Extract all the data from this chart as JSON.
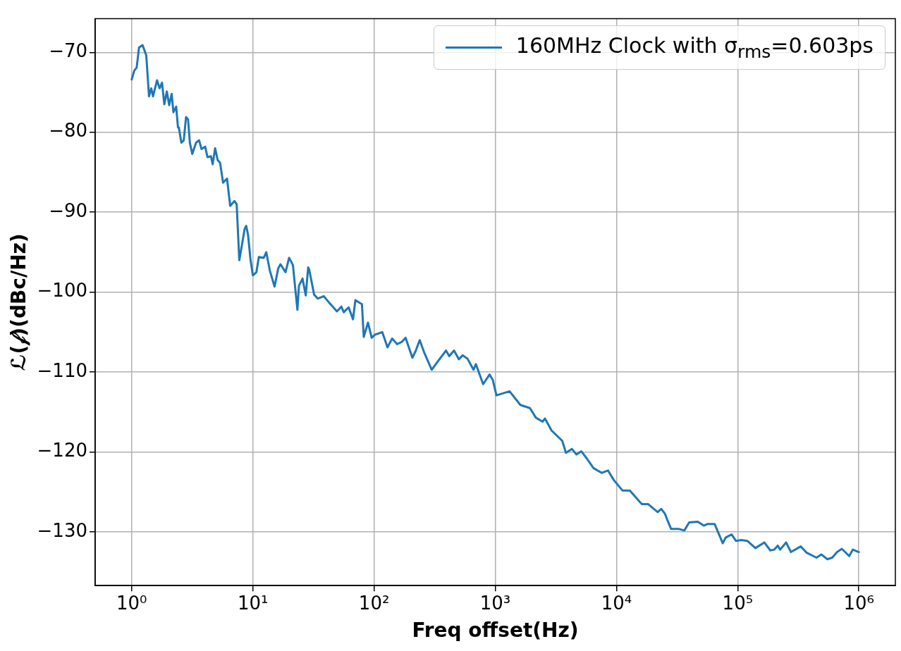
{
  "chart_data": {
    "type": "line",
    "xlabel": "Freq offset(Hz)",
    "ylabel": "ℒ(𝒻)(dBc/Hz)",
    "log": "x",
    "grid": true,
    "legend": "top right",
    "marker": "none",
    "line_style": "solid",
    "xlim": [
      0.5,
      2000000
    ],
    "ylim": [
      -136.7,
      -65.8
    ],
    "xticks": [
      {
        "value": 1,
        "label": "10⁰"
      },
      {
        "value": 10,
        "label": "10¹"
      },
      {
        "value": 100,
        "label": "10²"
      },
      {
        "value": 1000,
        "label": "10³"
      },
      {
        "value": 10000,
        "label": "10⁴"
      },
      {
        "value": 100000,
        "label": "10⁵"
      },
      {
        "value": 1000000,
        "label": "10⁶"
      }
    ],
    "yticks": [
      -130,
      -120,
      -110,
      -100,
      -90,
      -80,
      -70
    ],
    "series": [
      {
        "name": "160MHz Clock with σ$_{rms}$=0.603ps",
        "color": "#1f77b4",
        "x": [
          1,
          1.05,
          1.1,
          1.15,
          1.23,
          1.32,
          1.39,
          1.45,
          1.5,
          1.62,
          1.7,
          1.78,
          1.86,
          1.95,
          2.04,
          2.14,
          2.21,
          2.33,
          2.41,
          2.45,
          2.57,
          2.69,
          2.81,
          2.92,
          3.02,
          3.16,
          3.4,
          3.6,
          3.77,
          4.04,
          4.22,
          4.51,
          4.66,
          4.88,
          5.13,
          5.36,
          5.68,
          6.12,
          6.5,
          7.05,
          7.35,
          7.73,
          7.98,
          8.55,
          8.81,
          9.12,
          9.57,
          10,
          10.7,
          11.2,
          12.3,
          12.9,
          13.8,
          15.1,
          16.2,
          16.9,
          18.6,
          19.9,
          21.4,
          23.3,
          24,
          25.7,
          27.3,
          28.6,
          29.2,
          32,
          34.3,
          38.5,
          43.1,
          49.4,
          53.7,
          56.2,
          61.7,
          67,
          70.1,
          79.4,
          82.2,
          89.1,
          95.5,
          102,
          117,
          129,
          141,
          155,
          170,
          182,
          207,
          221,
          238,
          260,
          299,
          334,
          392,
          417,
          457,
          501,
          537,
          589,
          661,
          692,
          794,
          897,
          955,
          1023,
          1312,
          1611,
          1932,
          2163,
          2455,
          2570,
          2911,
          3573,
          3828,
          4285,
          4677,
          5129,
          5689,
          6457,
          7568,
          8511,
          9506,
          11200,
          12900,
          15500,
          16200,
          18200,
          21900,
          23400,
          25100,
          26300,
          28200,
          32400,
          36300,
          39800,
          46800,
          52500,
          56200,
          64600,
          75300,
          79400,
          89100,
          96800,
          107000,
          120000,
          140000,
          166000,
          186000,
          200000,
          214000,
          224000,
          251000,
          275000,
          331000,
          372000,
          447000,
          490000,
          550000,
          603000,
          661000,
          724000,
          832000,
          891000,
          1000000
        ],
        "values": [
          -73.4,
          -72.3,
          -71.9,
          -69.4,
          -69.1,
          -70.4,
          -75.5,
          -74.5,
          -75.5,
          -73.5,
          -74.5,
          -73.8,
          -76.5,
          -74.9,
          -76.6,
          -75.2,
          -77.5,
          -76.8,
          -79.4,
          -79.4,
          -81.3,
          -81,
          -78.1,
          -78.4,
          -81.3,
          -82.7,
          -81.3,
          -81,
          -82.1,
          -81.8,
          -83.1,
          -83,
          -84,
          -82,
          -83.5,
          -83.8,
          -86.3,
          -85.8,
          -89.2,
          -88.6,
          -89,
          -96,
          -94.8,
          -92.1,
          -91.7,
          -92.8,
          -96,
          -97.9,
          -97.5,
          -95.6,
          -95.7,
          -95,
          -97.3,
          -99.3,
          -97,
          -96.5,
          -97.5,
          -95.7,
          -96.6,
          -102.2,
          -99.2,
          -98.3,
          -100.4,
          -96.9,
          -97.2,
          -100.3,
          -100.8,
          -100.5,
          -101.4,
          -102.4,
          -101.8,
          -102.5,
          -101.9,
          -103.4,
          -101,
          -101.5,
          -105.6,
          -103.8,
          -105.7,
          -105.3,
          -105,
          -106.9,
          -105.8,
          -106.5,
          -106.2,
          -105.7,
          -108.2,
          -107.3,
          -106,
          -107.6,
          -109.7,
          -108.7,
          -107.3,
          -108,
          -107.3,
          -108.4,
          -107.9,
          -108.3,
          -109.7,
          -109,
          -111.5,
          -110.3,
          -111,
          -112.9,
          -112.4,
          -114.1,
          -114.5,
          -115.7,
          -116.2,
          -115.8,
          -117.3,
          -118.6,
          -120.1,
          -119.6,
          -120.3,
          -119.9,
          -120.8,
          -122,
          -122.6,
          -122.3,
          -123.5,
          -124.8,
          -124.8,
          -126.2,
          -126.5,
          -126.5,
          -127.5,
          -127.1,
          -127.7,
          -128.5,
          -129.6,
          -129.6,
          -129.8,
          -128.8,
          -128.7,
          -129.2,
          -129,
          -129,
          -131.4,
          -130.7,
          -130.3,
          -131.1,
          -131,
          -131.1,
          -132,
          -131.3,
          -132.3,
          -132.2,
          -131.7,
          -132.2,
          -131.3,
          -132.5,
          -131.8,
          -132.6,
          -133.2,
          -132.8,
          -133.4,
          -133.2,
          -132.5,
          -132.1,
          -133,
          -132.2,
          -132.5
        ]
      }
    ]
  }
}
